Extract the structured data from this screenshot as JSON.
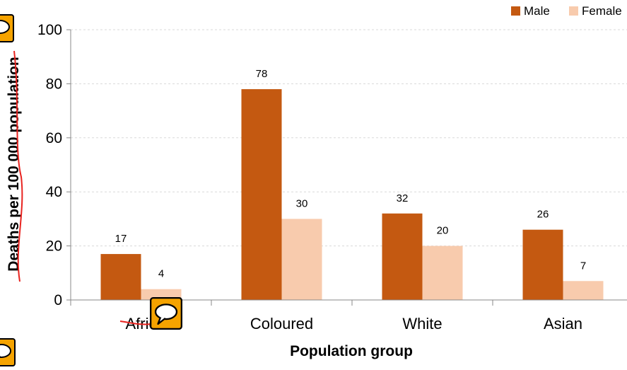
{
  "chart_data": {
    "type": "bar",
    "title": "",
    "xlabel": "Population group",
    "ylabel": "Deaths per 100 000 population",
    "categories": [
      "African",
      "Coloured",
      "White",
      "Asian"
    ],
    "category_labels": [
      "Afric",
      "Coloured",
      "White",
      "Asian"
    ],
    "series": [
      {
        "name": "Male",
        "values": [
          17,
          78,
          32,
          26
        ]
      },
      {
        "name": "Female",
        "values": [
          4,
          30,
          20,
          7
        ]
      }
    ],
    "value_labels": {
      "Male": [
        "17",
        "78",
        "32",
        "26"
      ],
      "Female": [
        "4",
        "30",
        "20",
        "7"
      ]
    },
    "yticks": [
      0,
      20,
      40,
      60,
      80,
      100
    ],
    "ylim": [
      0,
      100
    ],
    "grid": true,
    "legend_position": "top-right"
  },
  "colors": {
    "male": "#c45911",
    "female": "#f8cbad",
    "grid": "#d9d9d9",
    "annotation_icon": "#f5a300",
    "markup_stroke": "#e8231f"
  },
  "icons": [
    "comment-icon",
    "comment-icon",
    "comment-icon"
  ]
}
